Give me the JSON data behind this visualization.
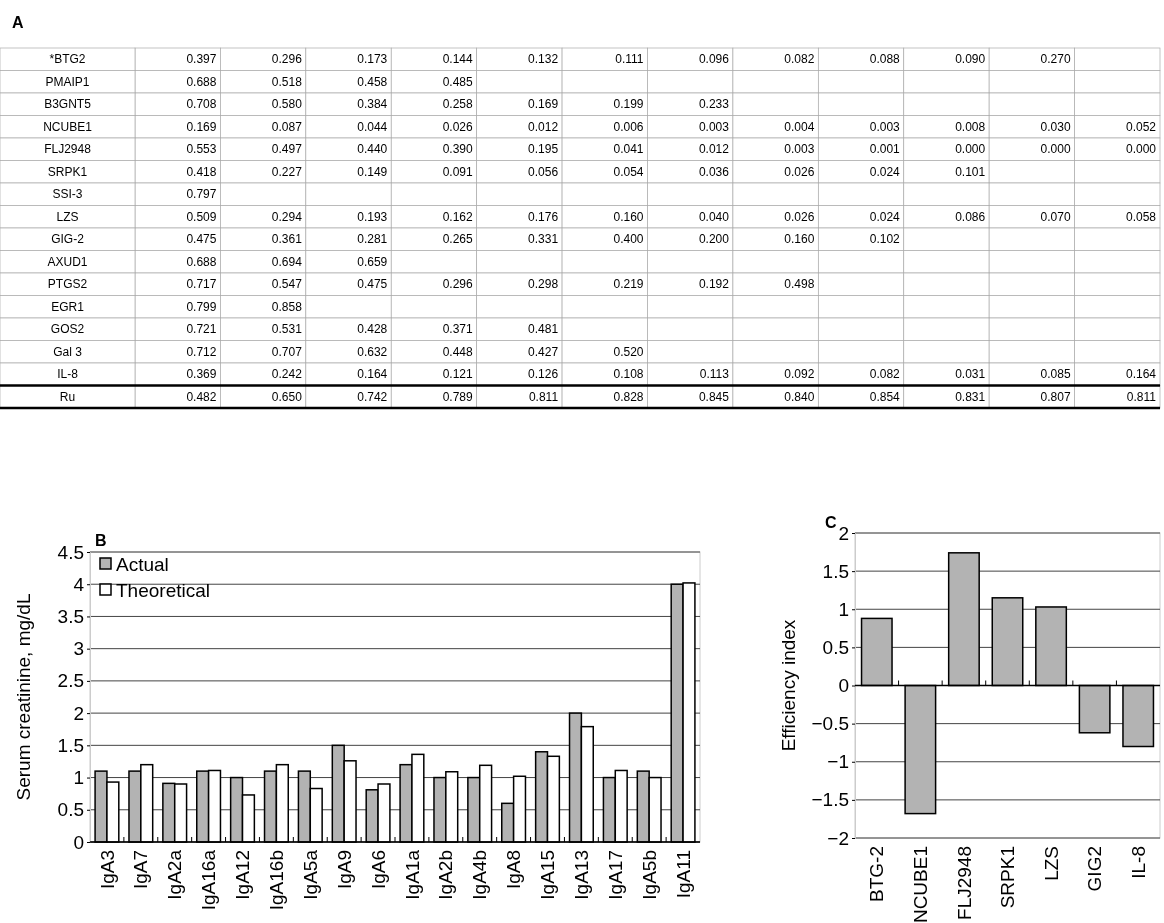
{
  "chart_data": [
    {
      "type": "heatmap",
      "title": "A",
      "categories": [
        null,
        null,
        null,
        null,
        null,
        null,
        null,
        null,
        null,
        null,
        null,
        null
      ],
      "y_categories": [
        "*BTG2",
        "PMAIP1",
        "B3GNT5",
        "NCUBE1",
        "FLJ2948",
        "SRPK1",
        "SSI-3",
        "LZS",
        "GIG-2",
        "AXUD1",
        "PTGS2",
        "EGR1",
        "GOS2",
        "Gal 3",
        "IL-8",
        "Ru"
      ],
      "cells": [
        [
          0.397,
          0.296,
          0.173,
          0.144,
          0.132,
          0.111,
          0.096,
          0.082,
          0.088,
          0.09,
          0.27,
          null
        ],
        [
          0.688,
          0.518,
          0.458,
          0.485,
          null,
          null,
          null,
          null,
          null,
          null,
          null,
          null
        ],
        [
          0.708,
          0.58,
          0.384,
          0.258,
          0.169,
          0.199,
          0.233,
          null,
          null,
          null,
          null,
          null
        ],
        [
          0.169,
          0.087,
          0.044,
          0.026,
          0.012,
          0.006,
          0.003,
          0.004,
          0.003,
          0.008,
          0.03,
          0.052
        ],
        [
          0.553,
          0.497,
          0.44,
          0.39,
          0.195,
          0.041,
          0.012,
          0.003,
          0.001,
          0.0,
          0.0,
          0.0
        ],
        [
          0.418,
          0.227,
          0.149,
          0.091,
          0.056,
          0.054,
          0.036,
          0.026,
          0.024,
          0.101,
          null,
          null
        ],
        [
          0.797,
          null,
          null,
          null,
          null,
          null,
          null,
          null,
          null,
          null,
          null,
          null
        ],
        [
          0.509,
          0.294,
          0.193,
          0.162,
          0.176,
          0.16,
          0.04,
          0.026,
          0.024,
          0.086,
          0.07,
          0.058
        ],
        [
          0.475,
          0.361,
          0.281,
          0.265,
          0.331,
          0.4,
          0.2,
          0.16,
          0.102,
          null,
          null,
          null
        ],
        [
          0.688,
          0.694,
          0.659,
          null,
          null,
          null,
          null,
          null,
          null,
          null,
          null,
          null
        ],
        [
          0.717,
          0.547,
          0.475,
          0.296,
          0.298,
          0.219,
          0.192,
          0.498,
          null,
          null,
          null,
          null
        ],
        [
          0.799,
          0.858,
          null,
          null,
          null,
          null,
          null,
          null,
          null,
          null,
          null,
          null
        ],
        [
          0.721,
          0.531,
          0.428,
          0.371,
          0.481,
          null,
          null,
          null,
          null,
          null,
          null,
          null
        ],
        [
          0.712,
          0.707,
          0.632,
          0.448,
          0.427,
          0.52,
          null,
          null,
          null,
          null,
          null,
          null
        ],
        [
          0.369,
          0.242,
          0.164,
          0.121,
          0.126,
          0.108,
          0.113,
          0.092,
          0.082,
          0.031,
          0.085,
          0.164
        ],
        [
          0.482,
          0.65,
          0.742,
          0.789,
          0.811,
          0.828,
          0.845,
          0.84,
          0.854,
          0.831,
          0.807,
          0.811
        ]
      ],
      "cell_labels": [
        [
          "0.397",
          "0.296",
          "0.173",
          "0.144",
          "0.132",
          "0.111",
          "0.096",
          "0.082",
          "0.088",
          "0.090",
          "0.270",
          null
        ],
        [
          "0.688",
          "0.518",
          "0.458",
          "0.485",
          null,
          null,
          null,
          null,
          null,
          null,
          null,
          null
        ],
        [
          "0.708",
          "0.580",
          "0.384",
          "0.258",
          "0.169",
          "0.199",
          "0.233",
          null,
          null,
          null,
          null,
          null
        ],
        [
          "0.169",
          "0.087",
          "0.044",
          "0.026",
          "0.012",
          "0.006",
          "0.003",
          "0.004",
          "0.003",
          "0.008",
          "0.030",
          "0.052"
        ],
        [
          "0.553",
          "0.497",
          "0.440",
          "0.390",
          "0.195",
          "0.041",
          "0.012",
          "0.003",
          "0.001",
          "0.000",
          "0.000",
          "0.000"
        ],
        [
          "0.418",
          "0.227",
          "0.149",
          "0.091",
          "0.056",
          "0.054",
          "0.036",
          "0.026",
          "0.024",
          "0.101",
          null,
          null
        ],
        [
          "0.797",
          null,
          null,
          null,
          null,
          null,
          null,
          null,
          null,
          null,
          null,
          null
        ],
        [
          "0.509",
          "0.294",
          "0.193",
          "0.162",
          "0.176",
          "0.160",
          "0.040",
          "0.026",
          "0.024",
          "0.086",
          "0.070",
          "0.058"
        ],
        [
          "0.475",
          "0.361",
          "0.281",
          "0.265",
          "0.331",
          "0.400",
          "0.200",
          "0.160",
          "0.102",
          null,
          null,
          null
        ],
        [
          "0.688",
          "0.694",
          "0.659",
          null,
          null,
          null,
          null,
          null,
          null,
          null,
          null,
          null
        ],
        [
          "0.717",
          "0.547",
          "0.475",
          "0.296",
          "0.298",
          "0.219",
          "0.192",
          "0.498",
          null,
          null,
          null,
          null
        ],
        [
          "0.799",
          "0.858",
          null,
          null,
          null,
          null,
          null,
          null,
          null,
          null,
          null,
          null
        ],
        [
          "0.721",
          "0.531",
          "0.428",
          "0.371",
          "0.481",
          null,
          null,
          null,
          null,
          null,
          null,
          null
        ],
        [
          "0.712",
          "0.707",
          "0.632",
          "0.448",
          "0.427",
          "0.520",
          null,
          null,
          null,
          null,
          null,
          null
        ],
        [
          "0.369",
          "0.242",
          "0.164",
          "0.121",
          "0.126",
          "0.108",
          "0.113",
          "0.092",
          "0.082",
          "0.031",
          "0.085",
          "0.164"
        ],
        [
          "0.482",
          "0.650",
          "0.742",
          "0.789",
          "0.811",
          "0.828",
          "0.845",
          "0.840",
          "0.854",
          "0.831",
          "0.807",
          "0.811"
        ]
      ]
    },
    {
      "type": "bar",
      "title": "B",
      "ylabel": "Serum creatinine, mg/dL",
      "categories": [
        "IgA3",
        "IgA7",
        "IgA2a",
        "IgA16a",
        "IgA12",
        "IgA16b",
        "IgA5a",
        "IgA9",
        "IgA6",
        "IgA1a",
        "IgA2b",
        "IgA4b",
        "IgA8",
        "IgA15",
        "IgA13",
        "IgA17",
        "IgA5b",
        "IgA11"
      ],
      "series": [
        {
          "name": "Actual",
          "color": "#b3b3b3",
          "values": [
            1.1,
            1.1,
            0.91,
            1.1,
            1.0,
            1.1,
            1.1,
            1.5,
            0.81,
            1.2,
            1.0,
            1.0,
            0.6,
            1.4,
            2.0,
            1.0,
            1.1,
            4.0
          ]
        },
        {
          "name": "Theoretical",
          "color": "#ffffff",
          "values": [
            0.93,
            1.2,
            0.9,
            1.11,
            0.73,
            1.2,
            0.83,
            1.26,
            0.9,
            1.36,
            1.09,
            1.19,
            1.02,
            1.33,
            1.79,
            1.11,
            1.0,
            4.02
          ]
        }
      ],
      "ylim": [
        0,
        4.5
      ],
      "yticks": [
        0,
        {
          "value": 0.5,
          "label": "0.5"
        },
        1,
        {
          "value": 1.5,
          "label": "1.5"
        },
        2,
        {
          "value": 2.5,
          "label": "2.5"
        },
        3,
        {
          "value": 3.5,
          "label": "3.5"
        },
        4,
        {
          "value": 4.5,
          "label": "4.5"
        }
      ],
      "grid": "y",
      "legend": "top left"
    },
    {
      "type": "bar",
      "title": "C",
      "ylabel": "Efficiency index",
      "categories": [
        "BTG-2",
        "NCUBE1",
        "FLJ2948",
        "SRPK1",
        "LZS",
        "GIG2",
        "IL-8"
      ],
      "values": [
        0.88,
        -1.68,
        1.74,
        1.15,
        1.03,
        -0.62,
        -0.8
      ],
      "color": "#b3b3b3",
      "ylim": [
        -2,
        2
      ],
      "yticks": [
        {
          "value": -2,
          "label": "−2"
        },
        {
          "value": -1.5,
          "label": "−1.5"
        },
        {
          "value": -1,
          "label": "−1"
        },
        {
          "value": -0.5,
          "label": "−0.5"
        },
        0,
        {
          "value": 0.5,
          "label": "0.5"
        },
        1,
        {
          "value": 1.5,
          "label": "1.5"
        },
        2
      ],
      "grid": "y"
    }
  ]
}
